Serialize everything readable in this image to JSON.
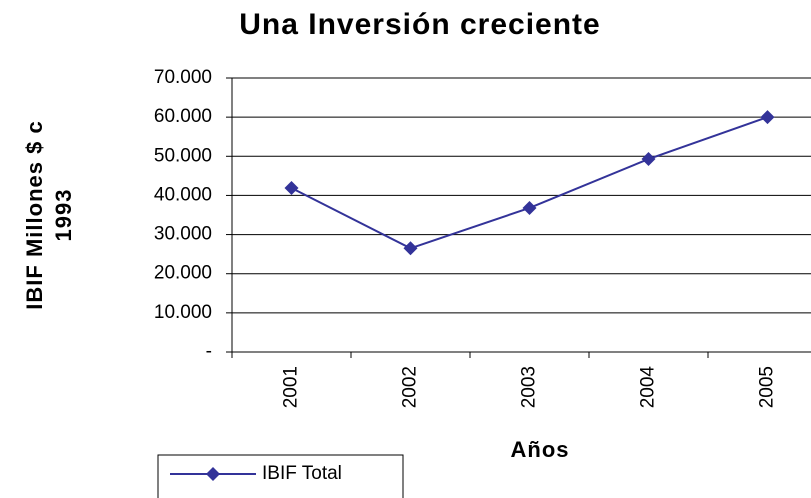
{
  "chart_data": {
    "type": "line",
    "title": "Una Inversión creciente",
    "y_label": [
      "IBIF Millones $ c",
      "1993"
    ],
    "x_label": "Años",
    "categories": [
      "2001",
      "2002",
      "2003",
      "2004",
      "2005"
    ],
    "series": [
      {
        "name": "IBIF Total",
        "color": "#333399",
        "values": [
          41900,
          26500,
          36800,
          49300,
          60000
        ]
      }
    ],
    "ylim": [
      0,
      70000
    ],
    "yticks": [
      {
        "value": 0,
        "label": "-"
      },
      {
        "value": 10000,
        "label": "10.000"
      },
      {
        "value": 20000,
        "label": "20.000"
      },
      {
        "value": 30000,
        "label": "30.000"
      },
      {
        "value": 40000,
        "label": "40.000"
      },
      {
        "value": 50000,
        "label": "50.000"
      },
      {
        "value": 60000,
        "label": "60.000"
      },
      {
        "value": 70000,
        "label": "70.000"
      }
    ],
    "grid": true,
    "legend": "bottom-left"
  }
}
